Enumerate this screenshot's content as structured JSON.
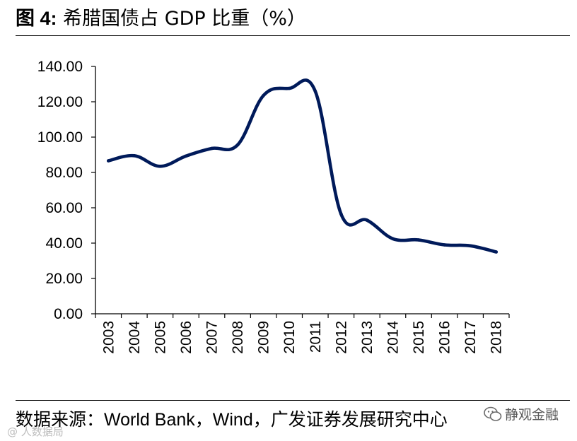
{
  "title": {
    "figure_label": "图 4:",
    "text": "希腊国债占 GDP 比重（%）"
  },
  "source": {
    "text": "数据来源：World Bank，Wind，广发证券发展研究中心"
  },
  "watermark": {
    "icon": "wechat-icon",
    "text": "静观金融"
  },
  "corner_mark": {
    "text": "@ 人数据局"
  },
  "colors": {
    "line": "#001a5a",
    "axis": "#000000",
    "text": "#000000"
  },
  "chart_data": {
    "type": "line",
    "title": "希腊国债占 GDP 比重（%）",
    "xlabel": "",
    "ylabel": "",
    "grid": false,
    "legend": "none",
    "ylim": [
      0,
      140
    ],
    "y_ticks": [
      0,
      20,
      40,
      60,
      80,
      100,
      120,
      140
    ],
    "y_tick_labels": [
      "0.00",
      "20.00",
      "40.00",
      "60.00",
      "80.00",
      "100.00",
      "120.00",
      "140.00"
    ],
    "categories": [
      "2003",
      "2004",
      "2005",
      "2006",
      "2007",
      "2008",
      "2009",
      "2010",
      "2011",
      "2012",
      "2013",
      "2014",
      "2015",
      "2016",
      "2017",
      "2018"
    ],
    "series": [
      {
        "name": "希腊国债占GDP比重",
        "values": [
          86.6,
          89.5,
          83.5,
          89.3,
          93.6,
          95.6,
          123.6,
          127.6,
          126.0,
          56.5,
          53.0,
          42.5,
          41.8,
          39.0,
          38.5,
          35.0
        ]
      }
    ]
  }
}
